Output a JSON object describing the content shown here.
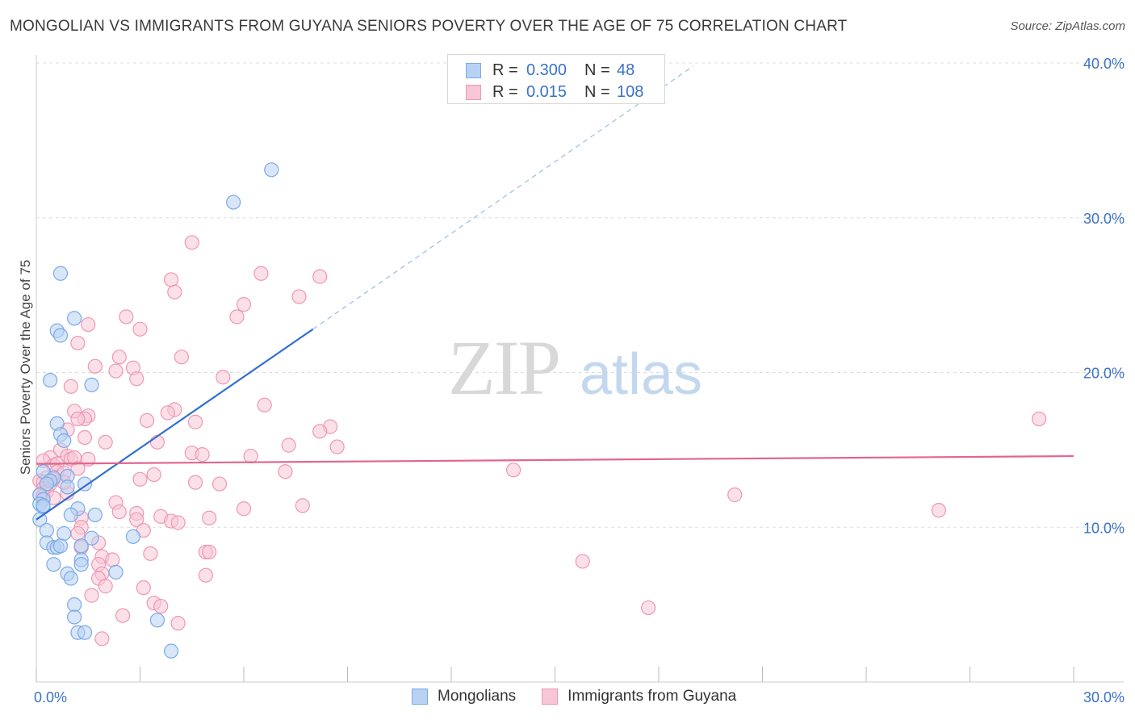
{
  "title": "MONGOLIAN VS IMMIGRANTS FROM GUYANA SENIORS POVERTY OVER THE AGE OF 75 CORRELATION CHART",
  "source": "Source: ZipAtlas.com",
  "colors": {
    "blue": "#7aaae8",
    "blue_fill": "#b8d2f3",
    "blue_line": "#2f6fd0",
    "pink": "#ee97b4",
    "pink_fill": "#f8c6d6",
    "pink_line": "#e0668f",
    "axis_text": "#3b72c8",
    "grid": "#dddddd"
  },
  "legend": {
    "rows": [
      {
        "r_label": "R =",
        "r_value": "0.300",
        "n_label": "N =",
        "n_value": "48",
        "color": "#7aaae8"
      },
      {
        "r_label": "R =",
        "r_value": "0.015",
        "n_label": "N =",
        "n_value": "108",
        "color": "#ee97b4"
      }
    ]
  },
  "watermark": {
    "zip": "ZIP",
    "atlas": "atlas"
  },
  "chart_data": {
    "type": "scatter",
    "title": "MONGOLIAN VS IMMIGRANTS FROM GUYANA SENIORS POVERTY OVER THE AGE OF 75 CORRELATION CHART",
    "xlabel": "",
    "ylabel": "Seniors Poverty Over the Age of 75",
    "xlim": [
      0,
      30
    ],
    "ylim": [
      0,
      40
    ],
    "x_tick_labels": [
      "0.0%",
      "30.0%"
    ],
    "y_ticks": [
      10,
      20,
      30,
      40
    ],
    "y_tick_labels": [
      "10.0%",
      "20.0%",
      "30.0%",
      "40.0%"
    ],
    "grid": true,
    "legend_position": "bottom",
    "series": [
      {
        "name": "Mongolians",
        "color": "#7aaae8",
        "trend": {
          "x0": 0,
          "y0": 10.5,
          "x1": 8.0,
          "y1": 22.8,
          "dash_to_x": 19.0,
          "dash_to_y": 39.8
        },
        "points": [
          [
            6.8,
            33.1
          ],
          [
            5.7,
            31.0
          ],
          [
            0.7,
            26.4
          ],
          [
            1.1,
            23.5
          ],
          [
            0.6,
            22.7
          ],
          [
            0.7,
            22.4
          ],
          [
            0.4,
            19.5
          ],
          [
            1.6,
            19.2
          ],
          [
            0.6,
            16.7
          ],
          [
            0.7,
            16.0
          ],
          [
            0.8,
            15.6
          ],
          [
            0.2,
            13.6
          ],
          [
            0.5,
            13.2
          ],
          [
            0.9,
            13.3
          ],
          [
            0.4,
            13.0
          ],
          [
            0.3,
            12.8
          ],
          [
            1.4,
            12.8
          ],
          [
            0.9,
            12.6
          ],
          [
            0.1,
            12.1
          ],
          [
            0.2,
            11.8
          ],
          [
            0.1,
            11.5
          ],
          [
            0.2,
            11.3
          ],
          [
            1.2,
            11.2
          ],
          [
            1.0,
            10.8
          ],
          [
            1.7,
            10.8
          ],
          [
            0.1,
            10.5
          ],
          [
            0.3,
            9.8
          ],
          [
            0.8,
            9.6
          ],
          [
            1.6,
            9.3
          ],
          [
            2.8,
            9.4
          ],
          [
            0.3,
            9.0
          ],
          [
            0.5,
            8.7
          ],
          [
            0.6,
            8.7
          ],
          [
            0.7,
            8.8
          ],
          [
            1.3,
            8.8
          ],
          [
            1.3,
            7.9
          ],
          [
            1.3,
            7.6
          ],
          [
            0.5,
            7.6
          ],
          [
            2.3,
            7.1
          ],
          [
            0.9,
            7.0
          ],
          [
            1.0,
            6.7
          ],
          [
            1.1,
            5.0
          ],
          [
            1.1,
            4.2
          ],
          [
            3.5,
            4.0
          ],
          [
            1.2,
            3.2
          ],
          [
            1.4,
            3.2
          ],
          [
            3.9,
            2.0
          ],
          [
            0.2,
            11.4
          ]
        ]
      },
      {
        "name": "Immigrants from Guyana",
        "color": "#ee97b4",
        "trend": {
          "x0": 0,
          "y0": 14.1,
          "x1": 30,
          "y1": 14.6
        },
        "points": [
          [
            4.5,
            28.4
          ],
          [
            6.5,
            26.4
          ],
          [
            8.2,
            26.2
          ],
          [
            3.9,
            26.0
          ],
          [
            4.0,
            25.2
          ],
          [
            7.6,
            24.9
          ],
          [
            6.0,
            24.4
          ],
          [
            5.8,
            23.6
          ],
          [
            2.6,
            23.6
          ],
          [
            1.5,
            23.1
          ],
          [
            3.0,
            22.8
          ],
          [
            1.2,
            21.9
          ],
          [
            2.4,
            21.0
          ],
          [
            4.2,
            21.0
          ],
          [
            1.7,
            20.4
          ],
          [
            2.8,
            20.3
          ],
          [
            2.3,
            20.1
          ],
          [
            5.4,
            19.7
          ],
          [
            2.9,
            19.6
          ],
          [
            1.0,
            19.1
          ],
          [
            6.6,
            17.9
          ],
          [
            4.0,
            17.6
          ],
          [
            3.8,
            17.4
          ],
          [
            1.1,
            17.5
          ],
          [
            1.5,
            17.2
          ],
          [
            1.4,
            17.0
          ],
          [
            1.2,
            17.0
          ],
          [
            3.2,
            16.9
          ],
          [
            4.6,
            16.8
          ],
          [
            8.5,
            16.5
          ],
          [
            29.0,
            17.0
          ],
          [
            8.2,
            16.2
          ],
          [
            0.9,
            16.3
          ],
          [
            1.4,
            15.8
          ],
          [
            2.0,
            15.5
          ],
          [
            3.5,
            15.5
          ],
          [
            7.3,
            15.3
          ],
          [
            8.7,
            15.2
          ],
          [
            0.7,
            15.0
          ],
          [
            4.5,
            14.8
          ],
          [
            4.8,
            14.7
          ],
          [
            6.2,
            14.6
          ],
          [
            0.9,
            14.6
          ],
          [
            1.0,
            14.4
          ],
          [
            1.1,
            14.5
          ],
          [
            0.4,
            14.5
          ],
          [
            0.2,
            14.3
          ],
          [
            0.5,
            14.0
          ],
          [
            0.6,
            14.1
          ],
          [
            1.2,
            13.8
          ],
          [
            0.6,
            13.6
          ],
          [
            0.8,
            13.5
          ],
          [
            3.4,
            13.4
          ],
          [
            7.2,
            13.6
          ],
          [
            13.8,
            13.7
          ],
          [
            0.3,
            13.2
          ],
          [
            0.5,
            13.1
          ],
          [
            0.1,
            13.0
          ],
          [
            0.2,
            12.9
          ],
          [
            0.4,
            12.8
          ],
          [
            3.0,
            13.1
          ],
          [
            4.6,
            12.9
          ],
          [
            5.3,
            12.8
          ],
          [
            0.2,
            12.5
          ],
          [
            0.3,
            12.3
          ],
          [
            0.9,
            12.2
          ],
          [
            0.1,
            12.1
          ],
          [
            0.2,
            12.0
          ],
          [
            0.5,
            11.9
          ],
          [
            20.2,
            12.1
          ],
          [
            2.3,
            11.6
          ],
          [
            7.7,
            11.4
          ],
          [
            6.0,
            11.2
          ],
          [
            26.1,
            11.1
          ],
          [
            2.4,
            11.0
          ],
          [
            2.9,
            10.9
          ],
          [
            3.6,
            10.7
          ],
          [
            5.0,
            10.6
          ],
          [
            1.3,
            10.6
          ],
          [
            2.9,
            10.5
          ],
          [
            3.9,
            10.4
          ],
          [
            4.1,
            10.3
          ],
          [
            1.3,
            10.0
          ],
          [
            3.1,
            9.8
          ],
          [
            1.2,
            9.6
          ],
          [
            1.8,
            9.0
          ],
          [
            1.3,
            8.7
          ],
          [
            4.9,
            8.4
          ],
          [
            5.0,
            8.4
          ],
          [
            3.3,
            8.3
          ],
          [
            1.9,
            8.1
          ],
          [
            2.2,
            7.9
          ],
          [
            15.8,
            7.8
          ],
          [
            1.8,
            7.6
          ],
          [
            1.9,
            7.0
          ],
          [
            4.9,
            6.9
          ],
          [
            1.8,
            6.7
          ],
          [
            2.0,
            6.2
          ],
          [
            3.1,
            6.1
          ],
          [
            1.6,
            5.6
          ],
          [
            3.4,
            5.1
          ],
          [
            3.6,
            4.9
          ],
          [
            17.7,
            4.8
          ],
          [
            2.5,
            4.3
          ],
          [
            4.1,
            3.8
          ],
          [
            1.9,
            2.8
          ],
          [
            1.5,
            14.4
          ],
          [
            0.8,
            12.9
          ]
        ]
      }
    ]
  }
}
